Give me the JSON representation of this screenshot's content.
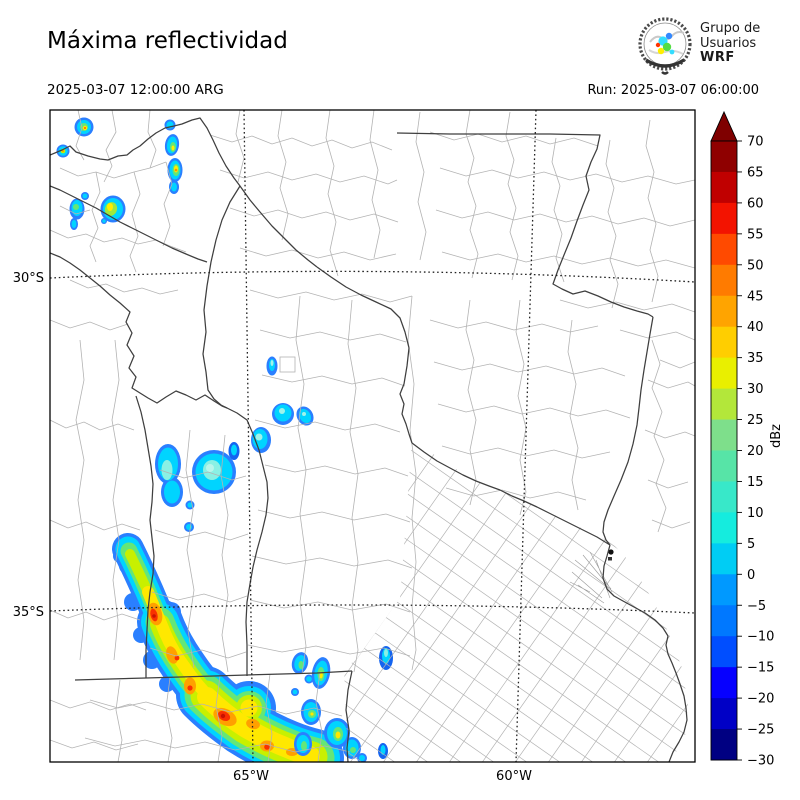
{
  "header": {
    "title": "Máxima reflectividad",
    "datetime": "2025-03-07 12:00:00 ARG",
    "run": "Run: 2025-03-07 06:00:00"
  },
  "logo": {
    "line1": "Grupo de",
    "line2": "Usuarios",
    "line3": "WRF"
  },
  "map": {
    "lat_labels": [
      "30°S",
      "35°S"
    ],
    "lon_labels": [
      "65°W",
      "60°W"
    ]
  },
  "colorbar": {
    "label": "dBz",
    "ticks": [
      "70",
      "65",
      "60",
      "55",
      "50",
      "45",
      "40",
      "35",
      "30",
      "25",
      "20",
      "15",
      "10",
      "5",
      "0",
      "−5",
      "−10",
      "−15",
      "−20",
      "−25",
      "−30"
    ],
    "segment_colors": [
      "#8f0000",
      "#c00000",
      "#f31300",
      "#ff4a00",
      "#ff7b00",
      "#ffa400",
      "#ffce00",
      "#e9ef00",
      "#b3e73a",
      "#7edf8b",
      "#57e4a7",
      "#38e8c9",
      "#15ecde",
      "#00cdf4",
      "#0099ff",
      "#0078ff",
      "#004eff",
      "#0600ff",
      "#0000c6",
      "#000082"
    ],
    "arrow_color": "#7f0000"
  }
}
